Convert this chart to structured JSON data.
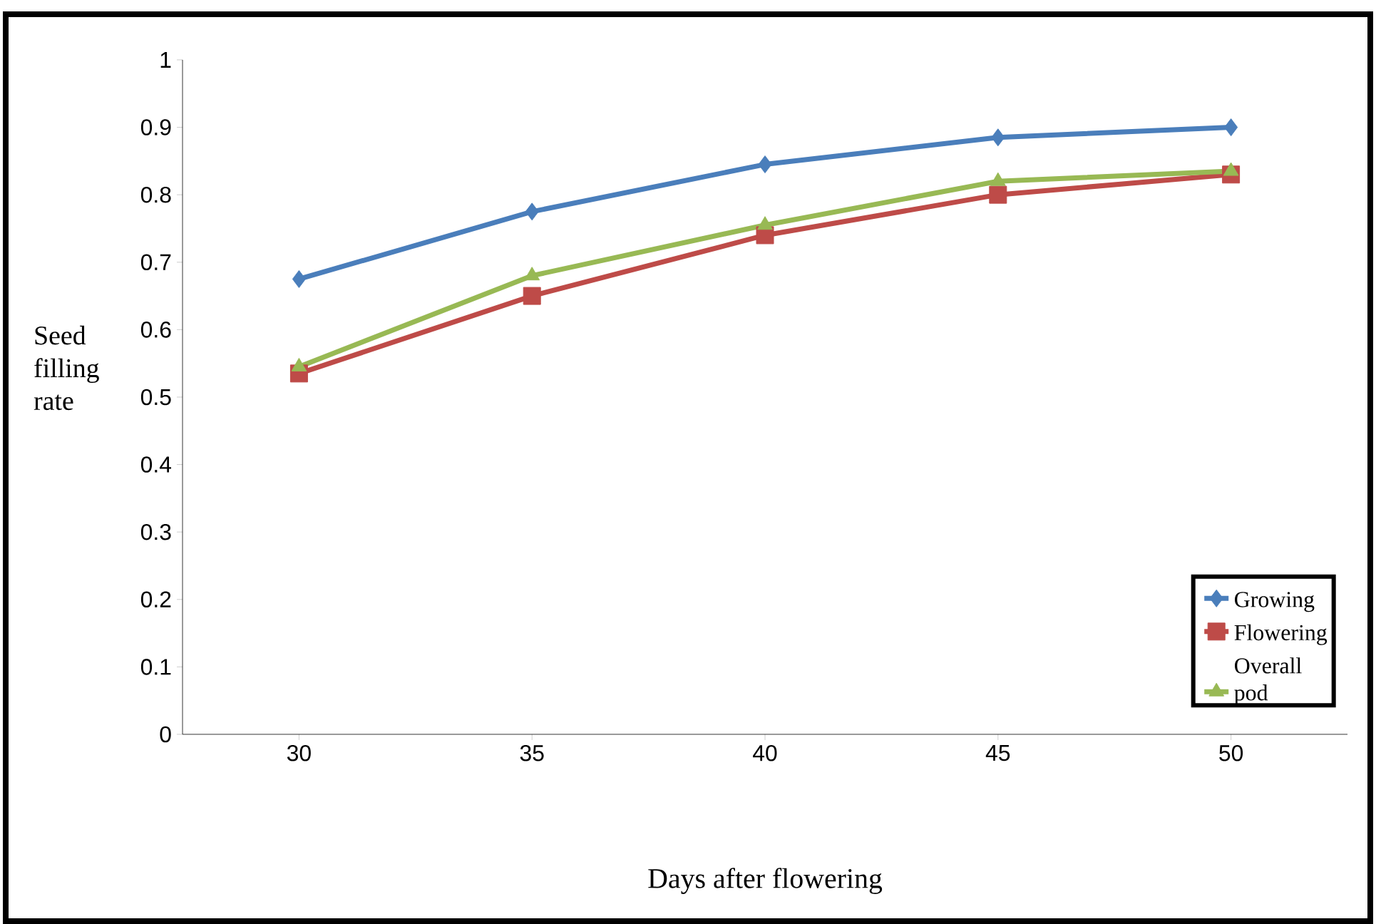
{
  "chart_data": {
    "type": "line",
    "xlabel": "Days after flowering",
    "ylabel": "Seed filling rate",
    "categories": [
      "30",
      "35",
      "40",
      "45",
      "50"
    ],
    "series": [
      {
        "name": "Growing",
        "color": "#4a7ebb",
        "marker": "diamond",
        "values": [
          0.675,
          0.775,
          0.845,
          0.885,
          0.9
        ]
      },
      {
        "name": "Flowering",
        "color": "#be4b48",
        "marker": "square",
        "values": [
          0.535,
          0.65,
          0.74,
          0.8,
          0.83
        ]
      },
      {
        "name": "Overall pod",
        "color": "#98b954",
        "marker": "triangle",
        "values": [
          0.545,
          0.68,
          0.755,
          0.82,
          0.835
        ]
      }
    ],
    "ylim": [
      0,
      1
    ],
    "yticks": [
      0,
      0.1,
      0.2,
      0.3,
      0.4,
      0.5,
      0.6,
      0.7,
      0.8,
      0.9,
      1
    ],
    "grid": false,
    "legend": "bottom right"
  }
}
